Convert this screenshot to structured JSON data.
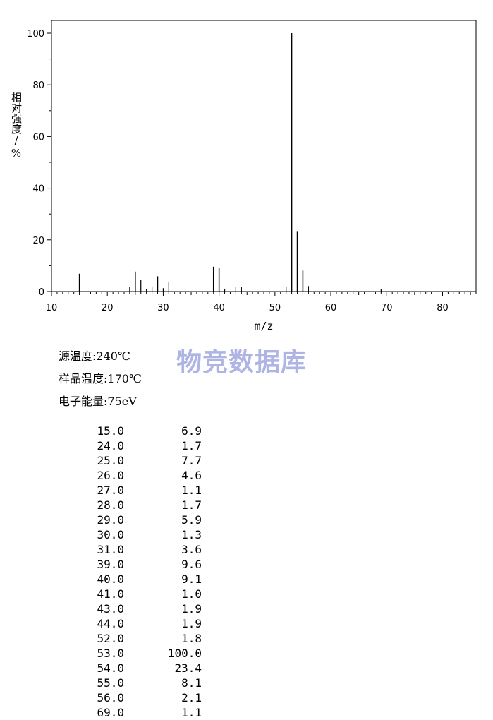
{
  "chart_data": {
    "type": "bar",
    "xlabel": "m/z",
    "ylabel": "相对强度/%",
    "xlim": [
      10,
      86
    ],
    "ylim": [
      0,
      100
    ],
    "x_ticks": [
      10,
      20,
      30,
      40,
      50,
      60,
      70,
      80
    ],
    "y_ticks": [
      0,
      20,
      40,
      60,
      80,
      100
    ],
    "grid": false,
    "series": [
      {
        "x": [
          15,
          24,
          25,
          26,
          27,
          28,
          29,
          30,
          31,
          39,
          40,
          41,
          43,
          44,
          52,
          53,
          54,
          55,
          56,
          69
        ],
        "y": [
          6.9,
          1.7,
          7.7,
          4.6,
          1.1,
          1.7,
          5.9,
          1.3,
          3.6,
          9.6,
          9.1,
          1.0,
          1.9,
          1.9,
          1.8,
          100.0,
          23.4,
          8.1,
          2.1,
          1.1
        ]
      }
    ]
  },
  "watermark": "物竞数据库",
  "conditions": {
    "source_temp": "源温度:240℃",
    "sample_temp": "样品温度:170℃",
    "electron_energy": "电子能量:75eV"
  },
  "peak_table": [
    {
      "mz": "15.0",
      "intensity": "6.9"
    },
    {
      "mz": "24.0",
      "intensity": "1.7"
    },
    {
      "mz": "25.0",
      "intensity": "7.7"
    },
    {
      "mz": "26.0",
      "intensity": "4.6"
    },
    {
      "mz": "27.0",
      "intensity": "1.1"
    },
    {
      "mz": "28.0",
      "intensity": "1.7"
    },
    {
      "mz": "29.0",
      "intensity": "5.9"
    },
    {
      "mz": "30.0",
      "intensity": "1.3"
    },
    {
      "mz": "31.0",
      "intensity": "3.6"
    },
    {
      "mz": "39.0",
      "intensity": "9.6"
    },
    {
      "mz": "40.0",
      "intensity": "9.1"
    },
    {
      "mz": "41.0",
      "intensity": "1.0"
    },
    {
      "mz": "43.0",
      "intensity": "1.9"
    },
    {
      "mz": "44.0",
      "intensity": "1.9"
    },
    {
      "mz": "52.0",
      "intensity": "1.8"
    },
    {
      "mz": "53.0",
      "intensity": "100.0"
    },
    {
      "mz": "54.0",
      "intensity": "23.4"
    },
    {
      "mz": "55.0",
      "intensity": "8.1"
    },
    {
      "mz": "56.0",
      "intensity": "2.1"
    },
    {
      "mz": "69.0",
      "intensity": "1.1"
    }
  ]
}
